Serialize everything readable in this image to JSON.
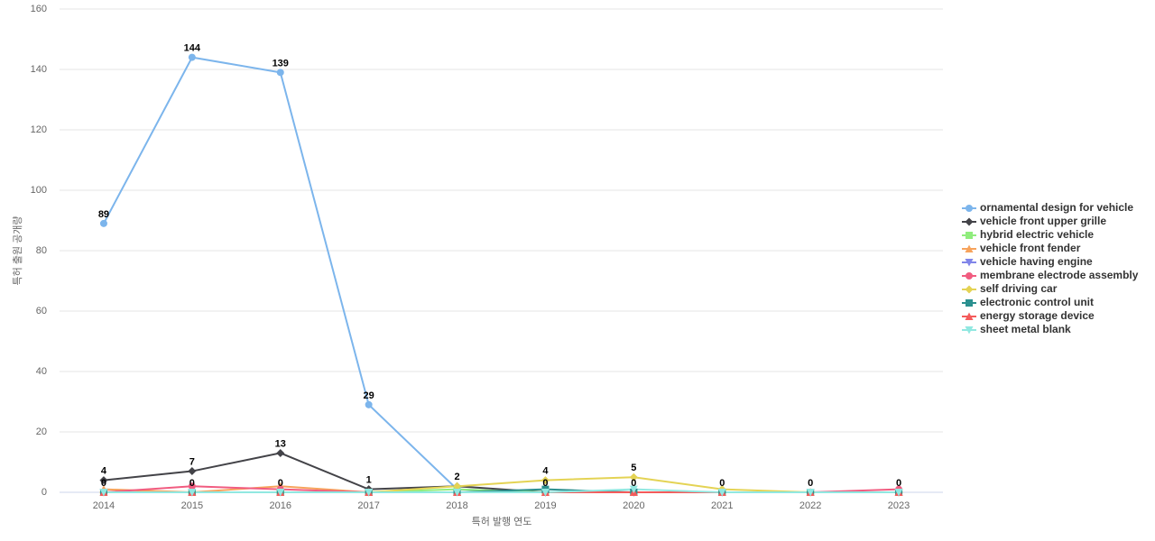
{
  "chart_data": {
    "type": "line",
    "x_label": "특허 발행 연도",
    "y_label": "특허 출원 공개량",
    "categories": [
      "2014",
      "2015",
      "2016",
      "2017",
      "2018",
      "2019",
      "2020",
      "2021",
      "2022",
      "2023"
    ],
    "ylim": [
      0,
      160
    ],
    "yticks": [
      0,
      20,
      40,
      60,
      80,
      100,
      120,
      140,
      160
    ],
    "grid": true,
    "legend": "right",
    "series": [
      {
        "name": "ornamental design for vehicle",
        "color": "#7cb5ec",
        "marker": "circle",
        "values": [
          89,
          144,
          139,
          29,
          1,
          0,
          0,
          0,
          0,
          0
        ],
        "data_labels": [
          0,
          1,
          2,
          3
        ]
      },
      {
        "name": "vehicle front upper grille",
        "color": "#434348",
        "marker": "diamond",
        "values": [
          4,
          7,
          13,
          1,
          2,
          0,
          0,
          0,
          0,
          0
        ],
        "data_labels": [
          0,
          1,
          2,
          3,
          4
        ]
      },
      {
        "name": "hybrid electric vehicle",
        "color": "#90ed7d",
        "marker": "square",
        "values": [
          0,
          0,
          0,
          0,
          1,
          0,
          0,
          0,
          0,
          0
        ],
        "data_labels": [
          0,
          1,
          2,
          5,
          6,
          7,
          8,
          9
        ]
      },
      {
        "name": "vehicle front fender",
        "color": "#f7a35c",
        "marker": "triangle",
        "values": [
          1,
          0,
          2,
          0,
          0,
          0,
          0,
          0,
          0,
          0
        ],
        "data_labels": []
      },
      {
        "name": "vehicle having engine",
        "color": "#8085e9",
        "marker": "triangle-down",
        "values": [
          0,
          0,
          0,
          0,
          0,
          0,
          0,
          0,
          0,
          0
        ],
        "data_labels": []
      },
      {
        "name": "membrane electrode assembly",
        "color": "#f15c80",
        "marker": "circle",
        "values": [
          0,
          2,
          1,
          0,
          0,
          0,
          0,
          0,
          0,
          1
        ],
        "data_labels": []
      },
      {
        "name": "self driving car",
        "color": "#e4d354",
        "marker": "diamond",
        "values": [
          0,
          0,
          0,
          0,
          2,
          4,
          5,
          1,
          0,
          0
        ],
        "data_labels": [
          5,
          6
        ]
      },
      {
        "name": "electronic control unit",
        "color": "#2b908f",
        "marker": "square",
        "values": [
          0,
          0,
          0,
          0,
          0,
          1,
          0,
          0,
          0,
          0
        ],
        "data_labels": []
      },
      {
        "name": "energy storage device",
        "color": "#f45b5b",
        "marker": "triangle",
        "values": [
          0,
          0,
          0,
          0,
          0,
          0,
          0,
          0,
          0,
          0
        ],
        "data_labels": []
      },
      {
        "name": "sheet metal blank",
        "color": "#91e8e1",
        "marker": "triangle-down",
        "values": [
          0,
          0,
          0,
          0,
          0,
          0,
          1,
          0,
          0,
          0
        ],
        "data_labels": []
      }
    ]
  }
}
